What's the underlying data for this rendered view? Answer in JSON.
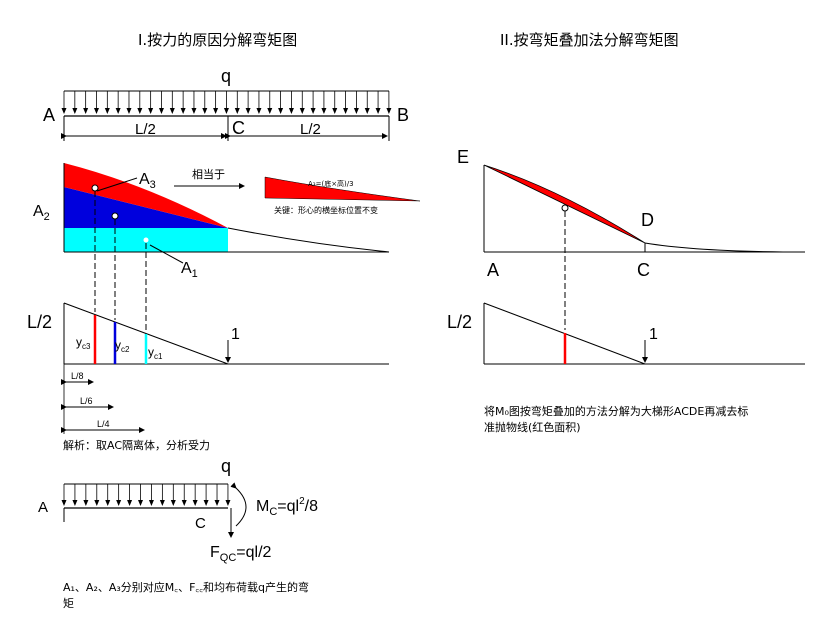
{
  "titles": {
    "left": "I.按力的原因分解弯矩图",
    "right": "II.按弯矩叠加法分解弯矩图"
  },
  "beam": {
    "load_label": "q",
    "left_support": "A",
    "right_support": "B",
    "mid_point": "C",
    "half_span": "L/2"
  },
  "areas": {
    "a3": "A",
    "a3_sub": "3",
    "a2": "A",
    "a2_sub": "2",
    "a1": "A",
    "a1_sub": "1",
    "equivalent": "相当于",
    "small_formula": "A₃=(底×高)/3",
    "key_note": "关键：形心的横坐标位置不变"
  },
  "influence": {
    "ordinate": "L/2",
    "unit": "1",
    "yc3": "y",
    "yc3_sub": "c3",
    "yc2": "y",
    "yc2_sub": "c2",
    "yc1": "y",
    "yc1_sub": "c1",
    "dim_l8": "L/8",
    "dim_l6": "L/6",
    "dim_l4": "L/4"
  },
  "analysis": {
    "heading": "解析：取AC隔离体，分析受力",
    "load_label": "q",
    "point_a": "A",
    "point_c": "C",
    "moment": "M",
    "moment_sub": "C",
    "moment_eq": "=ql",
    "moment_sup": "2",
    "moment_tail": "/8",
    "shear": "F",
    "shear_sub": "QC",
    "shear_eq": "=ql/2",
    "summary_line1": "A₁、A₂、A₃分别对应M꜀、F꜀꜀和均布荷载q产生的弯",
    "summary_line2": "矩"
  },
  "right_panel": {
    "point_e": "E",
    "point_d": "D",
    "point_a": "A",
    "point_c": "C",
    "ordinate": "L/2",
    "unit": "1",
    "desc_line1": "将M₀图按弯矩叠加的方法分解为大梯形ACDE再减去标",
    "desc_line2": "准抛物线(红色面积)"
  },
  "colors": {
    "red": "#ff0000",
    "blue": "#0000dd",
    "cyan": "#00ffff"
  }
}
